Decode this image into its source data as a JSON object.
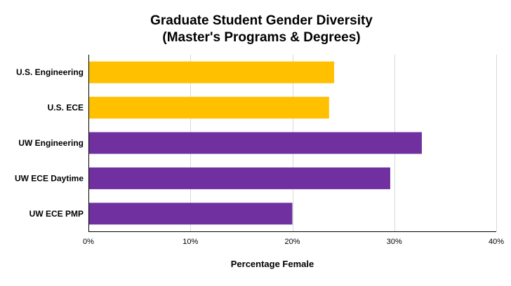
{
  "chart_data": {
    "type": "bar",
    "orientation": "horizontal",
    "title": [
      "Graduate Student Gender Diversity",
      "(Master's Programs & Degrees)"
    ],
    "xlabel": "Percentage Female",
    "ylabel": "",
    "categories": [
      "U.S. Engineering",
      "U.S. ECE",
      "UW Engineering",
      "UW ECE Daytime",
      "UW ECE PMP"
    ],
    "values": [
      24.1,
      23.6,
      32.7,
      29.6,
      20.0
    ],
    "colors": [
      "#FFC000",
      "#FFC000",
      "#7030A0",
      "#7030A0",
      "#7030A0"
    ],
    "xlim": [
      0,
      40
    ],
    "xticks": [
      0,
      10,
      20,
      30,
      40
    ],
    "xtick_labels": [
      "0%",
      "10%",
      "20%",
      "30%",
      "40%"
    ],
    "grid": true,
    "legend": "none"
  }
}
